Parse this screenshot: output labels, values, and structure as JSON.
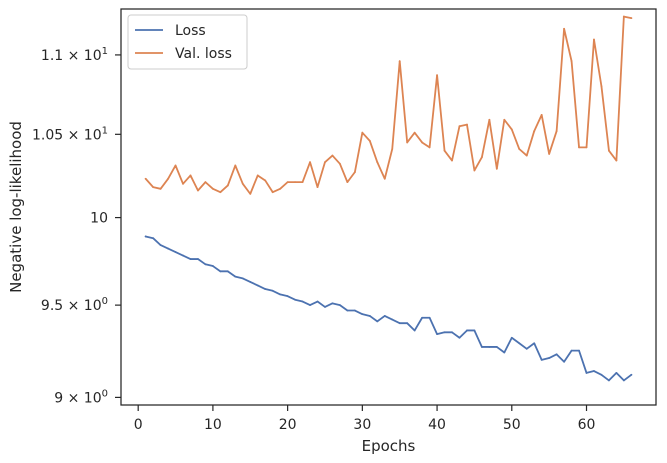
{
  "chart_data": {
    "type": "line",
    "xlabel": "Epochs",
    "ylabel": "Negative log-likelihood",
    "xlim": [
      -2.3,
      69.3
    ],
    "ylim": [
      8.96,
      11.3
    ],
    "yscale": "log",
    "grid": false,
    "legend_position": "top-left",
    "x_ticks": [
      {
        "value": 0,
        "label": "0"
      },
      {
        "value": 10,
        "label": "10"
      },
      {
        "value": 20,
        "label": "20"
      },
      {
        "value": 30,
        "label": "30"
      },
      {
        "value": 40,
        "label": "40"
      },
      {
        "value": 50,
        "label": "50"
      },
      {
        "value": 60,
        "label": "60"
      }
    ],
    "y_ticks": [
      {
        "value": 9.0,
        "base": "9",
        "exp": "0"
      },
      {
        "value": 9.5,
        "base": "9.5",
        "exp": "0"
      },
      {
        "value": 10.0,
        "base": "10",
        "exp": ""
      },
      {
        "value": 10.5,
        "base": "1.05",
        "exp": "1"
      },
      {
        "value": 11.0,
        "base": "1.1",
        "exp": "1"
      }
    ],
    "series": [
      {
        "name": "Loss",
        "color": "#4c72b0",
        "x": [
          1,
          2,
          3,
          4,
          5,
          6,
          7,
          8,
          9,
          10,
          11,
          12,
          13,
          14,
          15,
          16,
          17,
          18,
          19,
          20,
          21,
          22,
          23,
          24,
          25,
          26,
          27,
          28,
          29,
          30,
          31,
          32,
          33,
          34,
          35,
          36,
          37,
          38,
          39,
          40,
          41,
          42,
          43,
          44,
          45,
          46,
          47,
          48,
          49,
          50,
          51,
          52,
          53,
          54,
          55,
          56,
          57,
          58,
          59,
          60,
          61,
          62,
          63,
          64,
          65,
          66
        ],
        "values": [
          9.89,
          9.88,
          9.84,
          9.82,
          9.8,
          9.78,
          9.76,
          9.76,
          9.73,
          9.72,
          9.69,
          9.69,
          9.66,
          9.65,
          9.63,
          9.61,
          9.59,
          9.58,
          9.56,
          9.55,
          9.53,
          9.52,
          9.5,
          9.52,
          9.49,
          9.51,
          9.5,
          9.47,
          9.47,
          9.45,
          9.44,
          9.41,
          9.44,
          9.42,
          9.4,
          9.4,
          9.36,
          9.43,
          9.43,
          9.34,
          9.35,
          9.35,
          9.32,
          9.36,
          9.36,
          9.27,
          9.27,
          9.27,
          9.24,
          9.32,
          9.29,
          9.26,
          9.29,
          9.2,
          9.21,
          9.23,
          9.19,
          9.25,
          9.25,
          9.13,
          9.14,
          9.12,
          9.09,
          9.13,
          9.09,
          9.12
        ]
      },
      {
        "name": "Val. loss",
        "color": "#dd8452",
        "x": [
          1,
          2,
          3,
          4,
          5,
          6,
          7,
          8,
          9,
          10,
          11,
          12,
          13,
          14,
          15,
          16,
          17,
          18,
          19,
          20,
          21,
          22,
          23,
          24,
          25,
          26,
          27,
          28,
          29,
          30,
          31,
          32,
          33,
          34,
          35,
          36,
          37,
          38,
          39,
          40,
          41,
          42,
          43,
          44,
          45,
          46,
          47,
          48,
          49,
          50,
          51,
          52,
          53,
          54,
          55,
          56,
          57,
          58,
          59,
          60,
          61,
          62,
          63,
          64,
          65,
          66
        ],
        "values": [
          10.23,
          10.18,
          10.17,
          10.23,
          10.31,
          10.2,
          10.25,
          10.16,
          10.21,
          10.17,
          10.15,
          10.19,
          10.31,
          10.2,
          10.14,
          10.25,
          10.22,
          10.15,
          10.17,
          10.21,
          10.21,
          10.21,
          10.33,
          10.18,
          10.33,
          10.37,
          10.32,
          10.21,
          10.27,
          10.51,
          10.46,
          10.33,
          10.23,
          10.41,
          10.96,
          10.45,
          10.51,
          10.45,
          10.42,
          10.87,
          10.4,
          10.34,
          10.55,
          10.56,
          10.28,
          10.36,
          10.59,
          10.29,
          10.59,
          10.53,
          10.41,
          10.37,
          10.52,
          10.62,
          10.38,
          10.52,
          11.17,
          10.96,
          10.42,
          10.42,
          11.1,
          10.8,
          10.4,
          10.34,
          11.25,
          11.24
        ]
      }
    ]
  }
}
